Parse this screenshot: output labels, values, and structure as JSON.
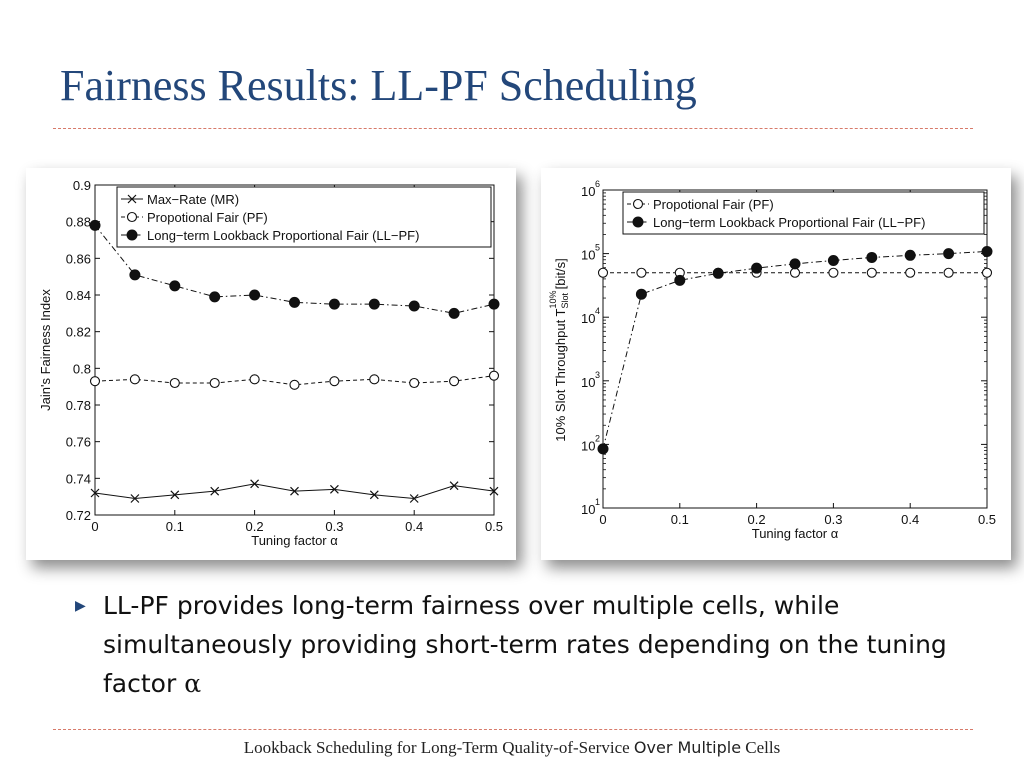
{
  "slide": {
    "title": "Fairness Results: LL-PF Scheduling",
    "bullet": "LL-PF provides long-term fairness over multiple cells, while simultaneously providing short-term rates depending on the tuning factor",
    "alpha": "α",
    "footer_a": "Lookback Scheduling for Long-Term Quality-of-Service ",
    "footer_b": "Over Multiple",
    "footer_c": " Cells"
  },
  "colors": {
    "title": "#23477a",
    "rule": "#d77a6a",
    "bullet": "#23477a"
  },
  "chart_data": [
    {
      "type": "line",
      "xlabel": "Tuning factor α",
      "ylabel": "Jain's Fairness Index",
      "xlim": [
        0,
        0.5
      ],
      "ylim": [
        0.72,
        0.9
      ],
      "xticks": [
        "0",
        "0.1",
        "0.2",
        "0.3",
        "0.4",
        "0.5"
      ],
      "yticks": [
        "0.72",
        "0.74",
        "0.76",
        "0.78",
        "0.8",
        "0.82",
        "0.84",
        "0.86",
        "0.88",
        "0.9"
      ],
      "legend_position": "top",
      "x": [
        0,
        0.05,
        0.1,
        0.15,
        0.2,
        0.25,
        0.3,
        0.35,
        0.4,
        0.45,
        0.5
      ],
      "series": [
        {
          "name": "Max−Rate (MR)",
          "marker": "x",
          "line": "solid",
          "values": [
            0.732,
            0.729,
            0.731,
            0.733,
            0.737,
            0.733,
            0.734,
            0.731,
            0.729,
            0.736,
            0.733
          ]
        },
        {
          "name": "Propotional Fair (PF)",
          "marker": "circle-open",
          "line": "dashed",
          "values": [
            0.793,
            0.794,
            0.792,
            0.792,
            0.794,
            0.791,
            0.793,
            0.794,
            0.792,
            0.793,
            0.796
          ]
        },
        {
          "name": "Long−term Lookback Proportional Fair (LL−PF)",
          "marker": "circle-filled",
          "line": "dashdot",
          "values": [
            0.878,
            0.851,
            0.845,
            0.839,
            0.84,
            0.836,
            0.835,
            0.835,
            0.834,
            0.83,
            0.835
          ]
        }
      ]
    },
    {
      "type": "line",
      "scale": "log-y",
      "xlabel": "Tuning factor α",
      "ylabel": "10% Slot Throughput T",
      "ylabel_sup": "10%",
      "ylabel_sub": "Slot",
      "ylabel_unit": "[bit/s]",
      "xlim": [
        0,
        0.5
      ],
      "ylim": [
        10,
        1000000
      ],
      "xticks": [
        "0",
        "0.1",
        "0.2",
        "0.3",
        "0.4",
        "0.5"
      ],
      "yticks": [
        {
          "base": "10",
          "exp": "1"
        },
        {
          "base": "10",
          "exp": "2"
        },
        {
          "base": "10",
          "exp": "3"
        },
        {
          "base": "10",
          "exp": "4"
        },
        {
          "base": "10",
          "exp": "5"
        },
        {
          "base": "10",
          "exp": "6"
        }
      ],
      "legend_position": "top",
      "x": [
        0,
        0.05,
        0.1,
        0.15,
        0.2,
        0.25,
        0.3,
        0.35,
        0.4,
        0.45,
        0.5
      ],
      "series": [
        {
          "name": "Propotional Fair (PF)",
          "marker": "circle-open",
          "line": "dashed",
          "values": [
            50000,
            50000,
            50000,
            50000,
            50000,
            50000,
            50000,
            50000,
            50000,
            50000,
            50000
          ]
        },
        {
          "name": "Long−term Lookback Proportional Fair (LL−PF)",
          "marker": "circle-filled",
          "line": "dashdot",
          "values": [
            85,
            23000,
            38000,
            49000,
            59000,
            69000,
            78000,
            87000,
            94000,
            100000,
            108000
          ]
        }
      ]
    }
  ]
}
